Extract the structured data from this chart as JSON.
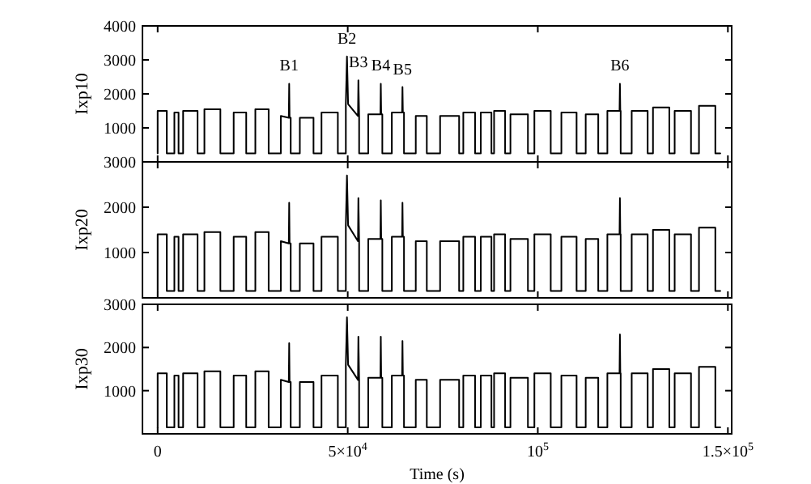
{
  "chart_data": [
    {
      "type": "line",
      "ylabel": "Ixp10",
      "xlim": [
        -4000,
        151000
      ],
      "xticks": [
        {
          "value": 0,
          "label": null
        },
        {
          "value": 50000,
          "label": null
        },
        {
          "value": 100000,
          "label": null
        },
        {
          "value": 150000,
          "label": null
        }
      ],
      "ylim": [
        0,
        4000
      ],
      "yticks": [
        1000,
        2000,
        3000,
        4000
      ],
      "tick_labels": "y",
      "grid": false,
      "marker": "none",
      "line_style": "solid",
      "annotations": [
        {
          "text": "B1",
          "x": 34600,
          "y": 2300
        },
        {
          "text": "B2",
          "x": 49800,
          "y": 3100
        },
        {
          "text": "B3",
          "x": 52800,
          "y": 2400
        },
        {
          "text": "B4",
          "x": 58700,
          "y": 2300
        },
        {
          "text": "B5",
          "x": 64400,
          "y": 2200
        },
        {
          "text": "B6",
          "x": 121600,
          "y": 2300
        }
      ],
      "series": [
        {
          "color": "#000000",
          "x": [
            0,
            0,
            2400,
            2400,
            4400,
            4400,
            5500,
            5500,
            6700,
            6700,
            10500,
            10500,
            12300,
            12300,
            16500,
            16500,
            20000,
            20000,
            23300,
            23300,
            25700,
            25700,
            29200,
            29200,
            32400,
            32400,
            34500,
            34600,
            34700,
            35000,
            35000,
            37400,
            37400,
            41000,
            41000,
            43100,
            43100,
            47400,
            47400,
            49500,
            49500,
            49800,
            50100,
            52700,
            52800,
            53000,
            53000,
            55400,
            55400,
            58600,
            58700,
            58800,
            59100,
            59100,
            61600,
            61600,
            64300,
            64400,
            64500,
            64800,
            64800,
            67900,
            67900,
            70800,
            70800,
            74300,
            74300,
            79300,
            79300,
            80400,
            80400,
            83500,
            83500,
            85000,
            85000,
            87800,
            87800,
            88500,
            88500,
            91400,
            91400,
            92800,
            92800,
            97400,
            97400,
            99100,
            99100,
            103400,
            103400,
            106200,
            106200,
            110200,
            110200,
            112600,
            112600,
            115900,
            115900,
            118300,
            118300,
            121500,
            121600,
            121700,
            121800,
            121800,
            124700,
            124700,
            128900,
            128900,
            130300,
            130300,
            134600,
            134600,
            136000,
            136000,
            140300,
            140300,
            142400,
            142400,
            146700,
            146700,
            148000
          ],
          "values": [
            250,
            1500,
            1500,
            250,
            250,
            1450,
            1450,
            250,
            250,
            1500,
            1500,
            250,
            250,
            1550,
            1550,
            250,
            250,
            1450,
            1450,
            250,
            250,
            1550,
            1550,
            250,
            250,
            1350,
            1300,
            2300,
            1300,
            1300,
            250,
            250,
            1300,
            1300,
            250,
            250,
            1450,
            1450,
            250,
            250,
            1700,
            3100,
            1700,
            1350,
            2400,
            1350,
            250,
            250,
            1400,
            1400,
            2300,
            1400,
            1400,
            250,
            250,
            1450,
            1450,
            2200,
            1450,
            1450,
            250,
            250,
            1350,
            1350,
            250,
            250,
            1350,
            1350,
            250,
            250,
            1450,
            1450,
            250,
            250,
            1450,
            1450,
            250,
            250,
            1500,
            1500,
            250,
            250,
            1400,
            1400,
            250,
            250,
            1500,
            1500,
            250,
            250,
            1450,
            1450,
            250,
            250,
            1400,
            1400,
            250,
            250,
            1500,
            1500,
            2300,
            1500,
            1500,
            250,
            250,
            1500,
            1500,
            250,
            250,
            1600,
            1600,
            250,
            250,
            1500,
            1500,
            250,
            250,
            1650,
            1650,
            250,
            250
          ]
        }
      ]
    },
    {
      "type": "line",
      "ylabel": "Ixp20",
      "xlim": [
        -4000,
        151000
      ],
      "xticks": [
        {
          "value": 0,
          "label": null
        },
        {
          "value": 50000,
          "label": null
        },
        {
          "value": 100000,
          "label": null
        },
        {
          "value": 150000,
          "label": null
        }
      ],
      "ylim": [
        0,
        3000
      ],
      "yticks": [
        1000,
        2000,
        3000
      ],
      "tick_labels": "y",
      "grid": false,
      "marker": "none",
      "line_style": "solid",
      "series": [
        {
          "color": "#000000",
          "x": [
            0,
            0,
            2400,
            2400,
            4400,
            4400,
            5500,
            5500,
            6700,
            6700,
            10500,
            10500,
            12300,
            12300,
            16500,
            16500,
            20000,
            20000,
            23300,
            23300,
            25700,
            25700,
            29200,
            29200,
            32400,
            32400,
            34500,
            34600,
            34700,
            35000,
            35000,
            37400,
            37400,
            41000,
            41000,
            43100,
            43100,
            47400,
            47400,
            49500,
            49500,
            49800,
            50100,
            52700,
            52800,
            53000,
            53000,
            55400,
            55400,
            58600,
            58700,
            58800,
            59100,
            59100,
            61600,
            61600,
            64300,
            64400,
            64500,
            64800,
            64800,
            67900,
            67900,
            70800,
            70800,
            74300,
            74300,
            79300,
            79300,
            80400,
            80400,
            83500,
            83500,
            85000,
            85000,
            87800,
            87800,
            88500,
            88500,
            91400,
            91400,
            92800,
            92800,
            97400,
            97400,
            99100,
            99100,
            103400,
            103400,
            106200,
            106200,
            110200,
            110200,
            112600,
            112600,
            115900,
            115900,
            118300,
            118300,
            121500,
            121600,
            121700,
            121800,
            121800,
            124700,
            124700,
            128900,
            128900,
            130300,
            130300,
            134600,
            134600,
            136000,
            136000,
            140300,
            140300,
            142400,
            142400,
            146700,
            146700,
            148000
          ],
          "values": [
            150,
            1400,
            1400,
            150,
            150,
            1350,
            1350,
            150,
            150,
            1400,
            1400,
            150,
            150,
            1450,
            1450,
            150,
            150,
            1350,
            1350,
            150,
            150,
            1450,
            1450,
            150,
            150,
            1250,
            1200,
            2100,
            1200,
            1200,
            150,
            150,
            1200,
            1200,
            150,
            150,
            1350,
            1350,
            150,
            150,
            1600,
            2700,
            1600,
            1250,
            2200,
            1250,
            150,
            150,
            1300,
            1300,
            2150,
            1300,
            1300,
            150,
            150,
            1350,
            1350,
            2100,
            1350,
            1350,
            150,
            150,
            1250,
            1250,
            150,
            150,
            1250,
            1250,
            150,
            150,
            1350,
            1350,
            150,
            150,
            1350,
            1350,
            150,
            150,
            1400,
            1400,
            150,
            150,
            1300,
            1300,
            150,
            150,
            1400,
            1400,
            150,
            150,
            1350,
            1350,
            150,
            150,
            1300,
            1300,
            150,
            150,
            1400,
            1400,
            2200,
            1400,
            1400,
            150,
            150,
            1400,
            1400,
            150,
            150,
            1500,
            1500,
            150,
            150,
            1400,
            1400,
            150,
            150,
            1550,
            1550,
            150,
            150
          ]
        }
      ]
    },
    {
      "type": "line",
      "ylabel": "Ixp30",
      "xlabel": "Time (s)",
      "xlim": [
        -4000,
        151000
      ],
      "xticks": [
        {
          "value": 0,
          "label": "0"
        },
        {
          "value": 50000,
          "label": "5×10$^{4}$"
        },
        {
          "value": 100000,
          "label": "10$^{5}$"
        },
        {
          "value": 150000,
          "label": "1.5×10$^{5}$"
        }
      ],
      "ylim": [
        0,
        3000
      ],
      "yticks": [
        1000,
        2000,
        3000
      ],
      "grid": false,
      "marker": "none",
      "line_style": "solid",
      "series": [
        {
          "color": "#000000",
          "x": [
            0,
            0,
            2400,
            2400,
            4400,
            4400,
            5500,
            5500,
            6700,
            6700,
            10500,
            10500,
            12300,
            12300,
            16500,
            16500,
            20000,
            20000,
            23300,
            23300,
            25700,
            25700,
            29200,
            29200,
            32400,
            32400,
            34500,
            34600,
            34700,
            35000,
            35000,
            37400,
            37400,
            41000,
            41000,
            43100,
            43100,
            47400,
            47400,
            49500,
            49500,
            49800,
            50100,
            52700,
            52800,
            53000,
            53000,
            55400,
            55400,
            58600,
            58700,
            58800,
            59100,
            59100,
            61600,
            61600,
            64300,
            64400,
            64500,
            64800,
            64800,
            67900,
            67900,
            70800,
            70800,
            74300,
            74300,
            79300,
            79300,
            80400,
            80400,
            83500,
            83500,
            85000,
            85000,
            87800,
            87800,
            88500,
            88500,
            91400,
            91400,
            92800,
            92800,
            97400,
            97400,
            99100,
            99100,
            103400,
            103400,
            106200,
            106200,
            110200,
            110200,
            112600,
            112600,
            115900,
            115900,
            118300,
            118300,
            121500,
            121600,
            121700,
            121800,
            121800,
            124700,
            124700,
            128900,
            128900,
            130300,
            130300,
            134600,
            134600,
            136000,
            136000,
            140300,
            140300,
            142400,
            142400,
            146700,
            146700,
            148000
          ],
          "values": [
            150,
            1400,
            1400,
            150,
            150,
            1350,
            1350,
            150,
            150,
            1400,
            1400,
            150,
            150,
            1450,
            1450,
            150,
            150,
            1350,
            1350,
            150,
            150,
            1450,
            1450,
            150,
            150,
            1250,
            1200,
            2100,
            1200,
            1200,
            150,
            150,
            1200,
            1200,
            150,
            150,
            1350,
            1350,
            150,
            150,
            1600,
            2700,
            1600,
            1250,
            2250,
            1250,
            150,
            150,
            1300,
            1300,
            2250,
            1300,
            1300,
            150,
            150,
            1350,
            1350,
            2150,
            1350,
            1350,
            150,
            150,
            1250,
            1250,
            150,
            150,
            1250,
            1250,
            150,
            150,
            1350,
            1350,
            150,
            150,
            1350,
            1350,
            150,
            150,
            1400,
            1400,
            150,
            150,
            1300,
            1300,
            150,
            150,
            1400,
            1400,
            150,
            150,
            1350,
            1350,
            150,
            150,
            1300,
            1300,
            150,
            150,
            1400,
            1400,
            2300,
            1400,
            1400,
            150,
            150,
            1400,
            1400,
            150,
            150,
            1500,
            1500,
            150,
            150,
            1400,
            1400,
            150,
            150,
            1550,
            1550,
            150,
            150
          ]
        }
      ]
    }
  ]
}
